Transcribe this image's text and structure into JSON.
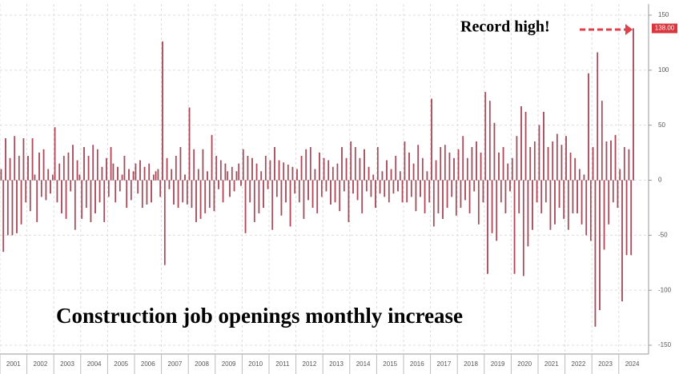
{
  "chart_data": {
    "type": "bar",
    "title": "Construction job openings monthly increase",
    "annotations": [
      "Record high!"
    ],
    "color": "#b04a5a",
    "grid": true,
    "ylim": [
      -150,
      150
    ],
    "yticks": [
      150,
      100,
      50,
      0,
      -50,
      -100,
      -150
    ],
    "categories": [
      null,
      null,
      null,
      null,
      null,
      null,
      "2001",
      null,
      null,
      null,
      null,
      null,
      null,
      null,
      null,
      null,
      null,
      null,
      "2002",
      null,
      null,
      null,
      null,
      null,
      null,
      null,
      null,
      null,
      null,
      null,
      "2003",
      null,
      null,
      null,
      null,
      null,
      null,
      null,
      null,
      null,
      null,
      null,
      "2004",
      null,
      null,
      null,
      null,
      null,
      null,
      null,
      null,
      null,
      null,
      null,
      "2005",
      null,
      null,
      null,
      null,
      null,
      null,
      null,
      null,
      null,
      null,
      null,
      "2006",
      null,
      null,
      null,
      null,
      null,
      null,
      null,
      null,
      null,
      null,
      null,
      "2007",
      null,
      null,
      null,
      null,
      null,
      null,
      null,
      null,
      null,
      null,
      null,
      "2008",
      null,
      null,
      null,
      null,
      null,
      null,
      null,
      null,
      null,
      null,
      null,
      "2009",
      null,
      null,
      null,
      null,
      null,
      null,
      null,
      null,
      null,
      null,
      null,
      "2010",
      null,
      null,
      null,
      null,
      null,
      null,
      null,
      null,
      null,
      null,
      null,
      "2011",
      null,
      null,
      null,
      null,
      null,
      null,
      null,
      null,
      null,
      null,
      null,
      "2012",
      null,
      null,
      null,
      null,
      null,
      null,
      null,
      null,
      null,
      null,
      null,
      "2013",
      null,
      null,
      null,
      null,
      null,
      null,
      null,
      null,
      null,
      null,
      null,
      "2014",
      null,
      null,
      null,
      null,
      null,
      null,
      null,
      null,
      null,
      null,
      null,
      "2015",
      null,
      null,
      null,
      null,
      null,
      null,
      null,
      null,
      null,
      null,
      null,
      "2016",
      null,
      null,
      null,
      null,
      null,
      null,
      null,
      null,
      null,
      null,
      null,
      "2017",
      null,
      null,
      null,
      null,
      null,
      null,
      null,
      null,
      null,
      null,
      null,
      "2018",
      null,
      null,
      null,
      null,
      null,
      null,
      null,
      null,
      null,
      null,
      null,
      "2019",
      null,
      null,
      null,
      null,
      null,
      null,
      null,
      null,
      null,
      null,
      null,
      "2020",
      null,
      null,
      null,
      null,
      null,
      null,
      null,
      null,
      null,
      null,
      null,
      "2021",
      null,
      null,
      null,
      null,
      null,
      null,
      null,
      null,
      null,
      null,
      null,
      "2022",
      null,
      null,
      null,
      null,
      null,
      null,
      null,
      null,
      null,
      null,
      null,
      "2023",
      null,
      null,
      null,
      null,
      null,
      null,
      null,
      null,
      null,
      null,
      null,
      "2024"
    ],
    "values": [
      10,
      -65,
      38,
      -50,
      20,
      -50,
      40,
      -48,
      22,
      -40,
      38,
      -20,
      22,
      -28,
      38,
      5,
      -38,
      25,
      -15,
      28,
      -18,
      10,
      -12,
      5,
      48,
      -20,
      15,
      -30,
      22,
      -35,
      25,
      -10,
      32,
      -45,
      18,
      5,
      -35,
      30,
      -25,
      22,
      -38,
      32,
      -30,
      28,
      -20,
      12,
      -38,
      20,
      -15,
      30,
      15,
      -20,
      12,
      -10,
      5,
      22,
      -25,
      10,
      -18,
      8,
      15,
      -12,
      18,
      -25,
      12,
      -22,
      15,
      -20,
      5,
      8,
      10,
      -15,
      126,
      -77,
      20,
      -8,
      10,
      -22,
      22,
      -25,
      30,
      -20,
      5,
      -22,
      66,
      -25,
      28,
      -38,
      10,
      -35,
      28,
      -30,
      8,
      -25,
      41,
      -28,
      22,
      -8,
      18,
      -20,
      15,
      8,
      -15,
      12,
      -10,
      8,
      15,
      -5,
      28,
      -48,
      22,
      -20,
      20,
      -38,
      15,
      -30,
      8,
      -25,
      22,
      -8,
      18,
      -45,
      30,
      -15,
      18,
      -32,
      16,
      -20,
      14,
      -42,
      12,
      -12,
      10,
      -20,
      22,
      -35,
      28,
      -18,
      30,
      -25,
      10,
      -30,
      25,
      -15,
      20,
      -10,
      18,
      -22,
      12,
      -20,
      15,
      -28,
      30,
      -10,
      20,
      -38,
      35,
      -12,
      30,
      -18,
      20,
      -30,
      28,
      -10,
      12,
      -15,
      5,
      -25,
      30,
      -12,
      8,
      -15,
      18,
      -20,
      10,
      -12,
      22,
      -10,
      8,
      -20,
      35,
      -20,
      25,
      -15,
      15,
      -28,
      32,
      -15,
      20,
      -30,
      8,
      -20,
      74,
      -42,
      18,
      -30,
      30,
      -35,
      32,
      -25,
      25,
      -15,
      20,
      -32,
      28,
      -25,
      40,
      -18,
      20,
      -30,
      30,
      -10,
      35,
      -40,
      25,
      -20,
      80,
      -85,
      72,
      -48,
      52,
      -55,
      25,
      -20,
      30,
      -30,
      15,
      -10,
      20,
      -85,
      40,
      -30,
      67,
      -87,
      62,
      -60,
      30,
      -45,
      35,
      -20,
      50,
      -30,
      62,
      -20,
      30,
      -45,
      35,
      -40,
      42,
      -25,
      32,
      -35,
      40,
      -45,
      25,
      -30,
      20,
      -30,
      10,
      -40,
      5,
      -50,
      97,
      -55,
      30,
      -133,
      116,
      -118,
      72,
      -63,
      35,
      -40,
      36,
      -20,
      41,
      -25,
      10,
      -110,
      30,
      -68,
      28,
      -68,
      138
    ],
    "value_labels": [
      null,
      null,
      null,
      null,
      null,
      null,
      null,
      null,
      null,
      null,
      null,
      null,
      null,
      null,
      null,
      null,
      null,
      null,
      null,
      null,
      null,
      null,
      null,
      null,
      null,
      null,
      null,
      null,
      null,
      null,
      null,
      null,
      null,
      null,
      null,
      null,
      null,
      null,
      null,
      null,
      null,
      null,
      null,
      null,
      null,
      null,
      null,
      null,
      null,
      null,
      null,
      null,
      null,
      null,
      null,
      null,
      null,
      null,
      null,
      null,
      null,
      null,
      null,
      null,
      null,
      null,
      null,
      null,
      null,
      null,
      null,
      null,
      null,
      null,
      null,
      null,
      null,
      null,
      null,
      null,
      null,
      null,
      null,
      null,
      null,
      null,
      null,
      null,
      null,
      null,
      null,
      null,
      null,
      null,
      null,
      null,
      null,
      null,
      null,
      null,
      null,
      null,
      null,
      null,
      null,
      null,
      null,
      null,
      null,
      null,
      null,
      null,
      null,
      null,
      null,
      null,
      null,
      null,
      null,
      null,
      null,
      null,
      null,
      null,
      null,
      null,
      null,
      null,
      null,
      null,
      null,
      null,
      null,
      null,
      null,
      null,
      null,
      null,
      null,
      null,
      null,
      null,
      null,
      null,
      null,
      null,
      null,
      null,
      null,
      null,
      null,
      null,
      null,
      null,
      null,
      null,
      null,
      null,
      null,
      null,
      null,
      null,
      null,
      null,
      null,
      null,
      null,
      null,
      null,
      null,
      null,
      null,
      null,
      null,
      null,
      null,
      null,
      null,
      null,
      null,
      null,
      null,
      null,
      null,
      null,
      null,
      null,
      null,
      null,
      null,
      null,
      null,
      null,
      null,
      null,
      null,
      null,
      null,
      null,
      null,
      null,
      null,
      null,
      null,
      null,
      null,
      null,
      null,
      null,
      null,
      null,
      null,
      null,
      null,
      null,
      null,
      null,
      null,
      null,
      null,
      null,
      null,
      null,
      null,
      null,
      null,
      null,
      null,
      null,
      null,
      null,
      null,
      null,
      null,
      null,
      null,
      null,
      null,
      null,
      null,
      null,
      null,
      null,
      null,
      null,
      null,
      null,
      null,
      null,
      null,
      null,
      null,
      null,
      null,
      null,
      null,
      null,
      null,
      null,
      null,
      null,
      null,
      null,
      null,
      null,
      null,
      null,
      null,
      null,
      null,
      null,
      null,
      null,
      null,
      null,
      null,
      null,
      null,
      null,
      null,
      null,
      null,
      "138.00"
    ]
  }
}
